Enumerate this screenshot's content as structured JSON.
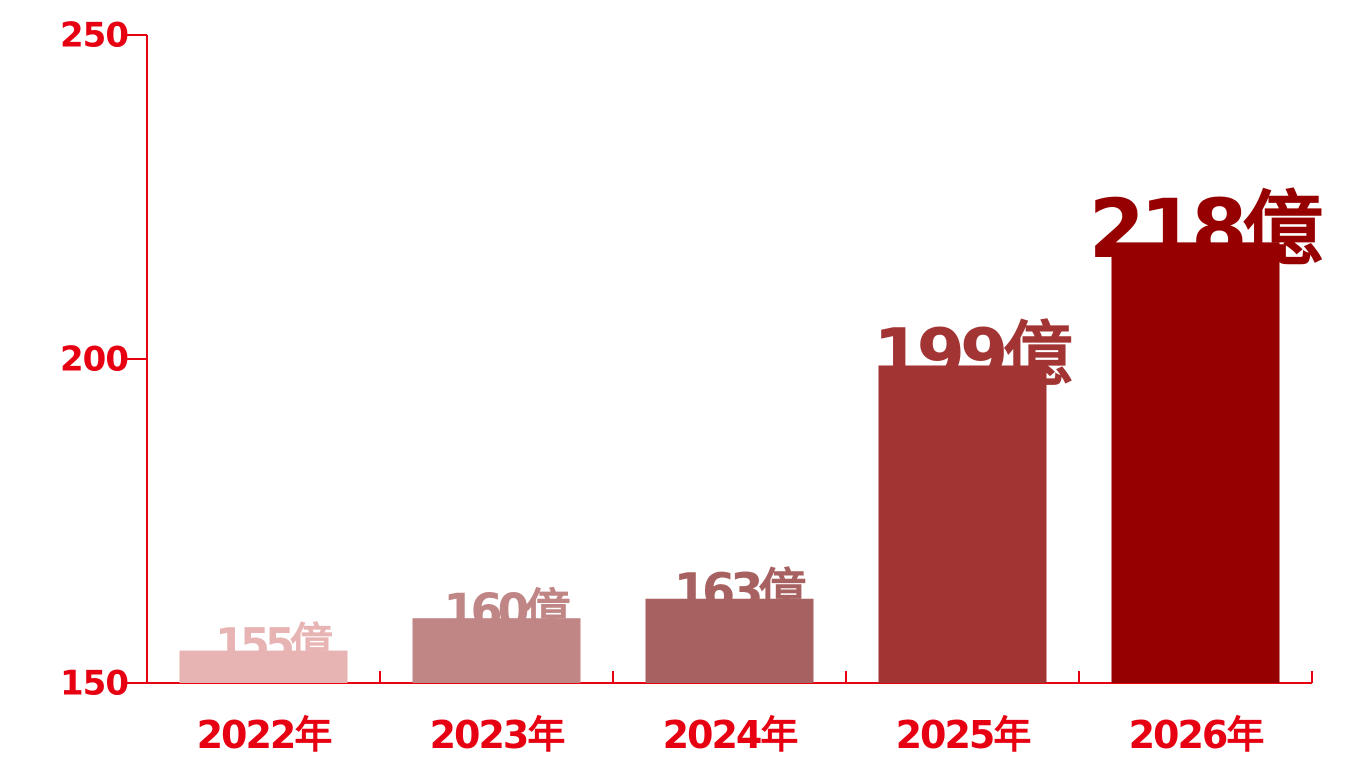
{
  "chart_data": {
    "type": "bar",
    "categories": [
      "2022年",
      "2023年",
      "2024年",
      "2025年",
      "2026年"
    ],
    "values": [
      155,
      160,
      163,
      199,
      218
    ],
    "value_labels": [
      "155億",
      "160億",
      "163億",
      "199億",
      "218億"
    ],
    "colors": [
      "#e8b3b3",
      "#c08585",
      "#a86161",
      "#a33434",
      "#960000"
    ],
    "axis_color": "#e60012",
    "ylim": [
      150,
      250
    ],
    "yticks": [
      150,
      200,
      250
    ]
  }
}
